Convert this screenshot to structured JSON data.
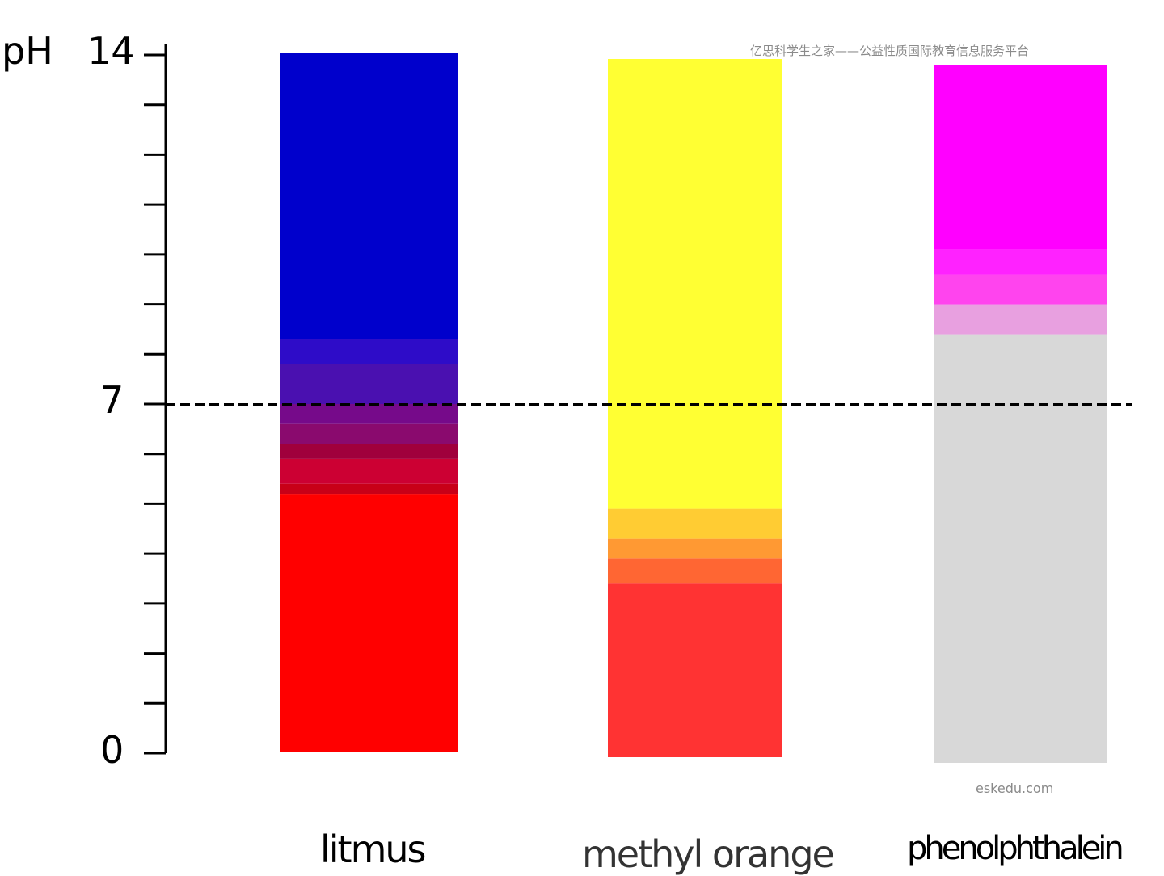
{
  "axis": {
    "unit": "pH",
    "max_label": "14",
    "mid_label": "7",
    "min_label": "0",
    "min": 0,
    "max": 14,
    "neutral": 7,
    "tick_count": 15
  },
  "watermarks": {
    "top": "亿思科学生之家——公益性质国际教育信息服务平台",
    "bottom": "eskedu.com"
  },
  "indicators": [
    {
      "label": "litmus",
      "bands": [
        {
          "from": 0,
          "to": 5.2,
          "color": "#ff0000"
        },
        {
          "from": 5.2,
          "to": 5.4,
          "color": "#c80018"
        },
        {
          "from": 5.4,
          "to": 5.9,
          "color": "#cc0033"
        },
        {
          "from": 5.9,
          "to": 6.2,
          "color": "#a0003c"
        },
        {
          "from": 6.2,
          "to": 6.6,
          "color": "#8a0a6e"
        },
        {
          "from": 6.6,
          "to": 7.0,
          "color": "#760a8a"
        },
        {
          "from": 7.0,
          "to": 7.8,
          "color": "#4a10b0"
        },
        {
          "from": 7.8,
          "to": 8.3,
          "color": "#2e0cc8"
        },
        {
          "from": 8.3,
          "to": 14,
          "color": "#0000cc"
        }
      ]
    },
    {
      "label": "methyl orange",
      "bands": [
        {
          "from": 0,
          "to": 3.4,
          "color": "#ff3333"
        },
        {
          "from": 3.4,
          "to": 3.9,
          "color": "#ff6633"
        },
        {
          "from": 3.9,
          "to": 4.3,
          "color": "#ff9933"
        },
        {
          "from": 4.3,
          "to": 4.9,
          "color": "#ffcc33"
        },
        {
          "from": 4.9,
          "to": 14,
          "color": "#ffff33"
        }
      ]
    },
    {
      "label": "phenolphthalein",
      "bands": [
        {
          "from": 0,
          "to": 8.4,
          "color": "#d8d8d8"
        },
        {
          "from": 8.4,
          "to": 9.0,
          "color": "#e8a0e0"
        },
        {
          "from": 9.0,
          "to": 9.6,
          "color": "#ff44ee"
        },
        {
          "from": 9.6,
          "to": 10.1,
          "color": "#ff22ff"
        },
        {
          "from": 10.1,
          "to": 14,
          "color": "#ff00ff"
        }
      ]
    }
  ]
}
